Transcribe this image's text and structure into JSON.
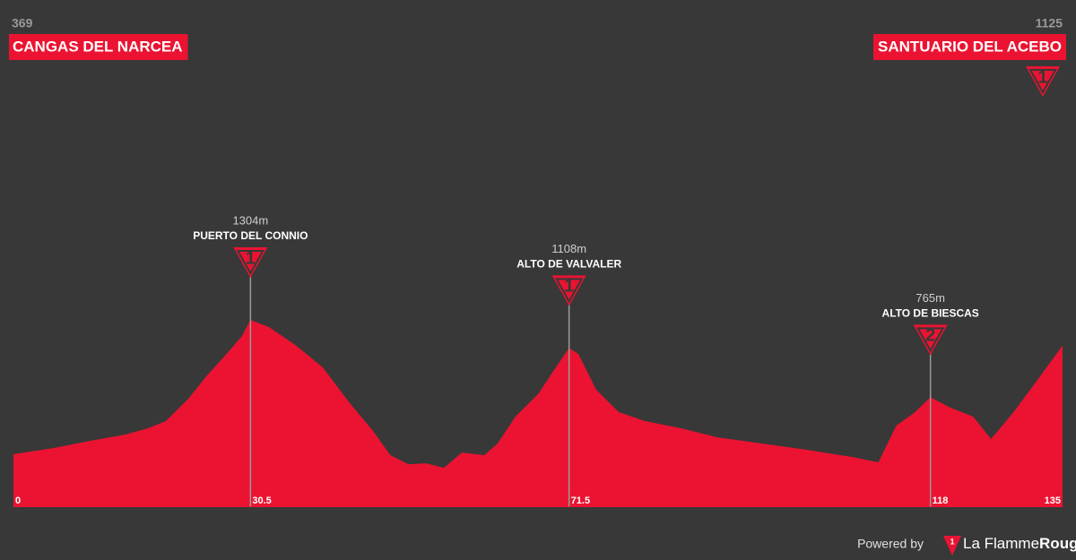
{
  "chart_data": {
    "type": "area",
    "color": "#eb1331",
    "start": {
      "name": "CANGAS DEL NARCEA",
      "elevation": 369
    },
    "finish": {
      "name": "SANTUARIO DEL ACEBO",
      "elevation": 1125,
      "category": 1
    },
    "x": [
      0,
      5.2,
      9.8,
      14.4,
      17.3,
      19.6,
      22.5,
      24.8,
      27.1,
      29.4,
      30.5,
      32.9,
      36.3,
      39.8,
      43.3,
      46.2,
      48.5,
      50.8,
      53.1,
      55.4,
      57.7,
      60.6,
      62.3,
      64.6,
      67.5,
      69.8,
      71.5,
      72.7,
      75,
      77.9,
      81.3,
      85.9,
      90.6,
      96.3,
      102.1,
      107.9,
      111.3,
      113.6,
      116,
      118,
      120.6,
      123.5,
      125.8,
      128.7,
      132.1,
      135
    ],
    "values": [
      369,
      412,
      461,
      505,
      549,
      599,
      754,
      910,
      1047,
      1191,
      1304,
      1253,
      1128,
      973,
      723,
      536,
      362,
      299,
      305,
      274,
      380,
      362,
      443,
      630,
      786,
      973,
      1108,
      1066,
      817,
      661,
      599,
      549,
      486,
      443,
      399,
      349,
      312,
      567,
      661,
      765,
      692,
      630,
      474,
      661,
      910,
      1125
    ],
    "xlim": [
      0,
      135
    ],
    "ylim": [
      0,
      3500
    ],
    "xticks": [
      0,
      30.5,
      71.5,
      118,
      135
    ],
    "climbs": [
      {
        "name": "PUERTO DEL CONNIO",
        "x": 30.5,
        "elevation": 1304,
        "elevation_label": "1304m",
        "category": 1
      },
      {
        "name": "ALTO DE VALVALER",
        "x": 71.5,
        "elevation": 1108,
        "elevation_label": "1108m",
        "category": 1
      },
      {
        "name": "ALTO DE BIESCAS",
        "x": 118,
        "elevation": 765,
        "elevation_label": "765m",
        "category": 2
      }
    ]
  },
  "footer": {
    "powered": "Powered by",
    "badge": "1",
    "brand_a": "La Flamme",
    "brand_b": "Rouge"
  }
}
